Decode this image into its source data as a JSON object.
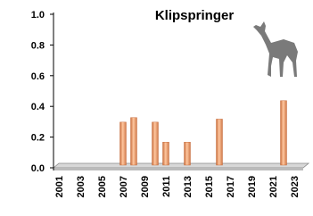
{
  "chart_data": {
    "type": "bar",
    "title": "Klipspringer",
    "categories": [
      "2001",
      null,
      "2003",
      null,
      "2005",
      null,
      "2007",
      null,
      "2009",
      null,
      "2011",
      null,
      "2013",
      null,
      "2015",
      null,
      "2017",
      null,
      "2019",
      null,
      "2021",
      null,
      "2023"
    ],
    "values": [
      null,
      null,
      null,
      null,
      null,
      null,
      0.28,
      0.31,
      null,
      0.28,
      0.15,
      null,
      0.15,
      null,
      null,
      0.3,
      null,
      null,
      null,
      null,
      null,
      0.42,
      null
    ],
    "color": "#f0a070",
    "ylim": [
      0,
      1
    ],
    "yticks": [
      {
        "value": 0,
        "label": "0.0"
      },
      0.2,
      0.4,
      0.6,
      0.8,
      {
        "value": 1,
        "label": "1.0"
      }
    ]
  }
}
